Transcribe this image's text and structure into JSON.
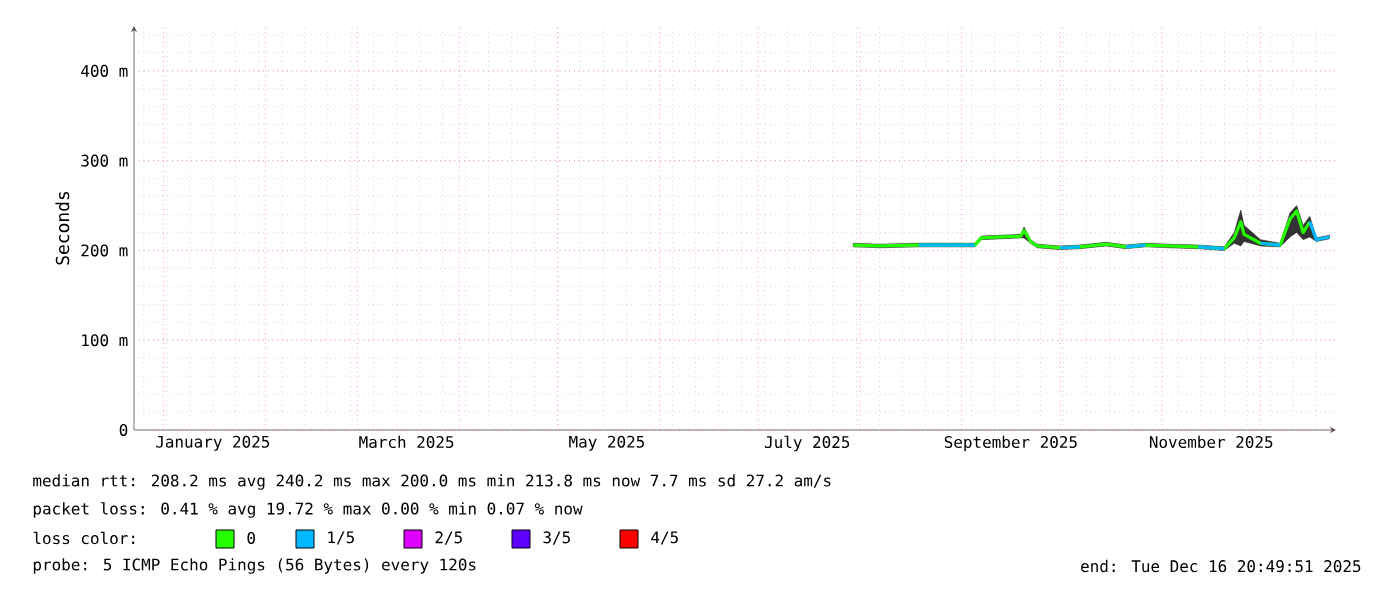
{
  "chart_data": {
    "type": "line",
    "ylabel": "Seconds",
    "legend_title": "loss color:",
    "legend": "bottom",
    "grid": true,
    "xlim": [
      "2024-12-23",
      "2025-12-24"
    ],
    "ylim": [
      0,
      450
    ],
    "xticks": [
      {
        "value": "2025-01-16",
        "label": "January 2025"
      },
      {
        "value": "2025-03-16",
        "label": "March 2025"
      },
      {
        "value": "2025-05-16",
        "label": "May 2025"
      },
      {
        "value": "2025-07-16",
        "label": "July 2025"
      },
      {
        "value": "2025-09-16",
        "label": "September 2025"
      },
      {
        "value": "2025-11-16",
        "label": "November 2025"
      }
    ],
    "yticks": [
      {
        "value": 0,
        "label": "0"
      },
      {
        "value": 100,
        "label": "100 m"
      },
      {
        "value": 200,
        "label": "200 m"
      },
      {
        "value": 300,
        "label": "300 m"
      },
      {
        "value": 400,
        "label": "400 m"
      }
    ],
    "x": [
      "2025-07-30",
      "2025-08-07",
      "2025-08-19",
      "2025-09-05",
      "2025-09-07",
      "2025-09-13",
      "2025-09-19",
      "2025-09-20",
      "2025-09-22",
      "2025-09-24",
      "2025-10-01",
      "2025-10-07",
      "2025-10-15",
      "2025-10-21",
      "2025-10-27",
      "2025-11-03",
      "2025-11-12",
      "2025-11-20",
      "2025-11-23",
      "2025-11-25",
      "2025-11-26",
      "2025-12-01",
      "2025-12-07",
      "2025-12-10",
      "2025-12-12",
      "2025-12-14",
      "2025-12-16",
      "2025-12-18",
      "2025-12-22"
    ],
    "series": [
      {
        "name": "0",
        "color": "#26ff00",
        "values": [
          206,
          205,
          206,
          206,
          214,
          215,
          216,
          222,
          210,
          205,
          203,
          204,
          207,
          204,
          206,
          205,
          204,
          202,
          214,
          232,
          218,
          208,
          206,
          235,
          244,
          220,
          232,
          null,
          null
        ],
        "lower": [
          204,
          203,
          204,
          204,
          212,
          213,
          214,
          214,
          208,
          203,
          201,
          202,
          205,
          202,
          204,
          203,
          202,
          200,
          208,
          205,
          210,
          205,
          204,
          215,
          220,
          212,
          215,
          210,
          213
        ],
        "upper": [
          208,
          207,
          208,
          208,
          216,
          217,
          218,
          226,
          212,
          207,
          205,
          206,
          209,
          206,
          208,
          207,
          206,
          204,
          220,
          245,
          228,
          212,
          208,
          242,
          250,
          228,
          238,
          214,
          217
        ]
      },
      {
        "name": "1/5",
        "color": "#00b8ff",
        "values": [
          null,
          null,
          206,
          206,
          null,
          null,
          null,
          null,
          null,
          null,
          203,
          204,
          null,
          204,
          206,
          null,
          204,
          202,
          null,
          null,
          null,
          208,
          206,
          null,
          null,
          null,
          232,
          212,
          215
        ]
      },
      {
        "name": "2/5",
        "color": "#dd00ff",
        "values": [
          null,
          null,
          null,
          null,
          null,
          null,
          null,
          null,
          null,
          null,
          null,
          null,
          null,
          null,
          null,
          null,
          null,
          null,
          null,
          null,
          null,
          null,
          null,
          null,
          null,
          null,
          null,
          null,
          null
        ]
      },
      {
        "name": "3/5",
        "color": "#5e00ff",
        "values": [
          null,
          null,
          null,
          null,
          null,
          null,
          null,
          null,
          null,
          null,
          null,
          null,
          null,
          null,
          null,
          null,
          null,
          null,
          null,
          null,
          null,
          null,
          null,
          null,
          null,
          null,
          null,
          null,
          null
        ]
      },
      {
        "name": "4/5",
        "color": "#ff0000",
        "values": [
          null,
          null,
          null,
          null,
          null,
          null,
          null,
          null,
          null,
          null,
          null,
          null,
          null,
          null,
          null,
          null,
          null,
          null,
          null,
          null,
          null,
          null,
          null,
          null,
          null,
          null,
          null,
          null,
          null
        ]
      }
    ],
    "annotations": [
      "median rtt: 208.2 ms avg 240.2 ms max 200.0 ms min 213.8 ms now 7.7 ms sd 27.2 am/s",
      "packet loss: 0.41 % avg 19.72 % max 0.00 % min 0.07 % now",
      "probe: 5 ICMP Echo Pings (56 Bytes) every 120s",
      "end: Tue Dec 16 20:49:51 2025"
    ]
  }
}
